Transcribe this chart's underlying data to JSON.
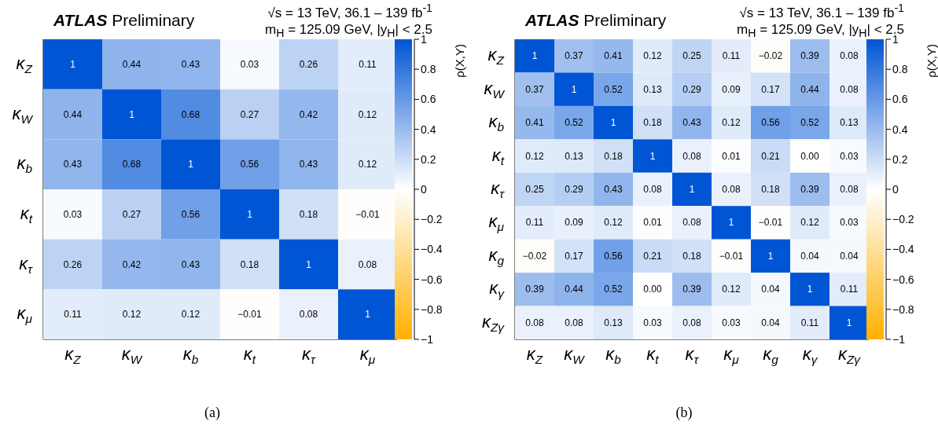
{
  "chart_data": [
    {
      "type": "heatmap",
      "title": "ATLAS Preliminary",
      "subtitle": "√s = 13 TeV, 36.1 – 139 fb$^{-1}$",
      "annotations": [
        "m$_{H}$ = 125.09 GeV, |y$_{H}$| < 2.5",
        "(a)"
      ],
      "clabel": "ρ(X,Y)",
      "categories": [
        "κ$_{Z}$",
        "κ$_{W}$",
        "κ$_{b}$",
        "κ$_{t}$",
        "κ$_{τ}$",
        "κ$_{μ}$"
      ],
      "y_categories": [
        "κ$_{Z}$",
        "κ$_{W}$",
        "κ$_{b}$",
        "κ$_{t}$",
        "κ$_{τ}$",
        "κ$_{μ}$"
      ],
      "cells": [
        [
          1,
          0.44,
          0.43,
          0.03,
          0.26,
          0.11
        ],
        [
          0.44,
          1,
          0.68,
          0.27,
          0.42,
          0.12
        ],
        [
          0.43,
          0.68,
          1,
          0.56,
          0.43,
          0.12
        ],
        [
          0.03,
          0.27,
          0.56,
          1,
          0.18,
          -0.01
        ],
        [
          0.26,
          0.42,
          0.43,
          0.18,
          1,
          0.08
        ],
        [
          0.11,
          0.12,
          0.12,
          -0.01,
          0.08,
          1
        ]
      ],
      "cell_labels": [
        [
          "1",
          "0.44",
          "0.43",
          "0.03",
          "0.26",
          "0.11"
        ],
        [
          "0.44",
          "1",
          "0.68",
          "0.27",
          "0.42",
          "0.12"
        ],
        [
          "0.43",
          "0.68",
          "1",
          "0.56",
          "0.43",
          "0.12"
        ],
        [
          "0.03",
          "0.27",
          "0.56",
          "1",
          "0.18",
          "−0.01"
        ],
        [
          "0.26",
          "0.42",
          "0.43",
          "0.18",
          "1",
          "0.08"
        ],
        [
          "0.11",
          "0.12",
          "0.12",
          "−0.01",
          "0.08",
          "1"
        ]
      ],
      "clim": [
        -1,
        1
      ],
      "cticks": [
        {
          "value": -1,
          "label": "−1"
        },
        {
          "value": -0.8,
          "label": "−0.8"
        },
        {
          "value": -0.6,
          "label": "−0.6"
        },
        {
          "value": -0.4,
          "label": "−0.4"
        },
        {
          "value": -0.2,
          "label": "−0.2"
        },
        0,
        0.2,
        0.4,
        0.6,
        0.8,
        1
      ],
      "colors": [
        "#ffb000",
        "#ffffff",
        "#0055d4"
      ]
    },
    {
      "type": "heatmap",
      "title": "ATLAS Preliminary",
      "subtitle": "√s = 13 TeV, 36.1 – 139 fb$^{-1}$",
      "annotations": [
        "m$_{H}$ = 125.09 GeV, |y$_{H}$| < 2.5",
        "(b)"
      ],
      "clabel": "ρ(X,Y)",
      "categories": [
        "κ$_{Z}$",
        "κ$_{W}$",
        "κ$_{b}$",
        "κ$_{t}$",
        "κ$_{τ}$",
        "κ$_{μ}$",
        "κ$_{g}$",
        "κ$_{γ}$",
        "κ$_{Zγ}$"
      ],
      "y_categories": [
        "κ$_{Z}$",
        "κ$_{W}$",
        "κ$_{b}$",
        "κ$_{t}$",
        "κ$_{τ}$",
        "κ$_{μ}$",
        "κ$_{g}$",
        "κ$_{γ}$",
        "κ$_{Zγ}$"
      ],
      "cells": [
        [
          1,
          0.37,
          0.41,
          0.12,
          0.25,
          0.11,
          -0.02,
          0.39,
          0.08
        ],
        [
          0.37,
          1,
          0.52,
          0.13,
          0.29,
          0.09,
          0.17,
          0.44,
          0.08
        ],
        [
          0.41,
          0.52,
          1,
          0.18,
          0.43,
          0.12,
          0.56,
          0.52,
          0.13
        ],
        [
          0.12,
          0.13,
          0.18,
          1,
          0.08,
          0.01,
          0.21,
          0,
          0.03
        ],
        [
          0.25,
          0.29,
          0.43,
          0.08,
          1,
          0.08,
          0.18,
          0.39,
          0.08
        ],
        [
          0.11,
          0.09,
          0.12,
          0.01,
          0.08,
          1,
          -0.01,
          0.12,
          0.03
        ],
        [
          -0.02,
          0.17,
          0.56,
          0.21,
          0.18,
          -0.01,
          1,
          0.04,
          0.04
        ],
        [
          0.39,
          0.44,
          0.52,
          0,
          0.39,
          0.12,
          0.04,
          1,
          0.11
        ],
        [
          0.08,
          0.08,
          0.13,
          0.03,
          0.08,
          0.03,
          0.04,
          0.11,
          1
        ]
      ],
      "cell_labels": [
        [
          "1",
          "0.37",
          "0.41",
          "0.12",
          "0.25",
          "0.11",
          "−0.02",
          "0.39",
          "0.08"
        ],
        [
          "0.37",
          "1",
          "0.52",
          "0.13",
          "0.29",
          "0.09",
          "0.17",
          "0.44",
          "0.08"
        ],
        [
          "0.41",
          "0.52",
          "1",
          "0.18",
          "0.43",
          "0.12",
          "0.56",
          "0.52",
          "0.13"
        ],
        [
          "0.12",
          "0.13",
          "0.18",
          "1",
          "0.08",
          "0.01",
          "0.21",
          "0.00",
          "0.03"
        ],
        [
          "0.25",
          "0.29",
          "0.43",
          "0.08",
          "1",
          "0.08",
          "0.18",
          "0.39",
          "0.08"
        ],
        [
          "0.11",
          "0.09",
          "0.12",
          "0.01",
          "0.08",
          "1",
          "−0.01",
          "0.12",
          "0.03"
        ],
        [
          "−0.02",
          "0.17",
          "0.56",
          "0.21",
          "0.18",
          "−0.01",
          "1",
          "0.04",
          "0.04"
        ],
        [
          "0.39",
          "0.44",
          "0.52",
          "0.00",
          "0.39",
          "0.12",
          "0.04",
          "1",
          "0.11"
        ],
        [
          "0.08",
          "0.08",
          "0.13",
          "0.03",
          "0.08",
          "0.03",
          "0.04",
          "0.11",
          "1"
        ]
      ],
      "clim": [
        -1,
        1
      ],
      "cticks": [
        {
          "value": -1,
          "label": "−1"
        },
        {
          "value": -0.8,
          "label": "−0.8"
        },
        {
          "value": -0.6,
          "label": "−0.6"
        },
        {
          "value": -0.4,
          "label": "−0.4"
        },
        {
          "value": -0.2,
          "label": "−0.2"
        },
        0,
        0.2,
        0.4,
        0.6,
        0.8,
        1
      ],
      "colors": [
        "#ffb000",
        "#ffffff",
        "#0055d4"
      ]
    }
  ]
}
